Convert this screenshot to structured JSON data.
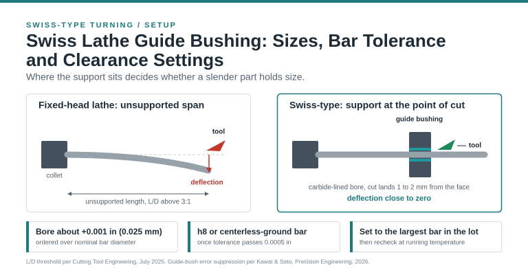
{
  "header": {
    "eyebrow": "SWISS-TYPE TURNING / SETUP",
    "title_lines": [
      "Swiss Lathe Guide Bushing: Sizes, Bar Tolerance",
      "and Clearance Settings"
    ],
    "subtitle": "Where the support sits decides whether a slender part holds size."
  },
  "panels": [
    {
      "title": "Fixed-head lathe: unsupported span",
      "collet": "collet",
      "tool": "tool",
      "deflection": "deflection",
      "span": "unsupported length, L/D above 3:1"
    },
    {
      "title": "Swiss-type: support at the point of cut",
      "bushing": "guide bushing",
      "tool": "tool",
      "note": "carbide-lined bore, cut lands 1 to 2 mm from the face",
      "result": "deflection close to zero"
    }
  ],
  "cards": [
    {
      "title": "Bore about +0.001 in (0.025 mm)",
      "text": "ordered over nominal bar diameter"
    },
    {
      "title": "h8 or centerless-ground bar",
      "text": "once tolerance passes 0.0005 in"
    },
    {
      "title": "Set to the largest bar in the lot",
      "text": "then recheck at running temperature"
    }
  ],
  "footer": "L/D threshold per Cutting Tool Engineering, July 2025. Guide-bush error suppression per Kawai & Sato, Precision Engineering, 2026."
}
